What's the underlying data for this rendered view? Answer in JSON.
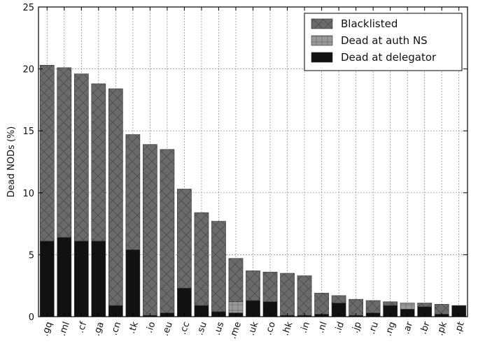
{
  "chart_data": {
    "type": "bar",
    "stacked": true,
    "ylabel": "Dead NODs (%)",
    "ylim": [
      0,
      25
    ],
    "yticks": [
      0,
      5,
      10,
      15,
      20,
      25
    ],
    "grid": true,
    "legend_position": "top-right",
    "categories": [
      ".gq",
      ".ml",
      ".cf",
      ".ga",
      ".cn",
      ".tk",
      ".io",
      ".eu",
      ".cc",
      ".su",
      ".us",
      ".me",
      ".uk",
      ".co",
      ".hk",
      ".in",
      ".nl",
      ".id",
      ".jp",
      ".ru",
      ".ng",
      ".ar",
      ".br",
      ".pk",
      ".pt"
    ],
    "series": [
      {
        "name": "Dead at delegator",
        "color": "#111111",
        "values": [
          6.1,
          6.4,
          6.1,
          6.1,
          0.9,
          5.4,
          0.1,
          0.3,
          2.3,
          0.9,
          0.4,
          0.3,
          1.3,
          1.2,
          0.1,
          0.1,
          0.2,
          1.1,
          0.1,
          0.3,
          0.9,
          0.6,
          0.8,
          0.2,
          0.9
        ]
      },
      {
        "name": "Dead at auth NS",
        "color": "#9a9a9a",
        "values": [
          0.0,
          0.0,
          0.0,
          0.0,
          0.0,
          0.0,
          0.0,
          0.0,
          0.0,
          0.0,
          0.0,
          0.9,
          0.0,
          0.0,
          0.0,
          0.0,
          0.0,
          0.0,
          0.0,
          0.0,
          0.0,
          0.5,
          0.0,
          0.0,
          0.0
        ]
      },
      {
        "name": "Blacklisted",
        "color": "#6a6a6a",
        "values": [
          14.2,
          13.7,
          13.5,
          12.7,
          17.5,
          9.3,
          13.8,
          13.2,
          8.0,
          7.5,
          7.3,
          3.5,
          2.4,
          2.4,
          3.4,
          3.2,
          1.7,
          0.6,
          1.3,
          1.0,
          0.3,
          0.0,
          0.3,
          0.8,
          0.0
        ]
      }
    ],
    "legend_order": [
      "Blacklisted",
      "Dead at auth NS",
      "Dead at delegator"
    ]
  }
}
